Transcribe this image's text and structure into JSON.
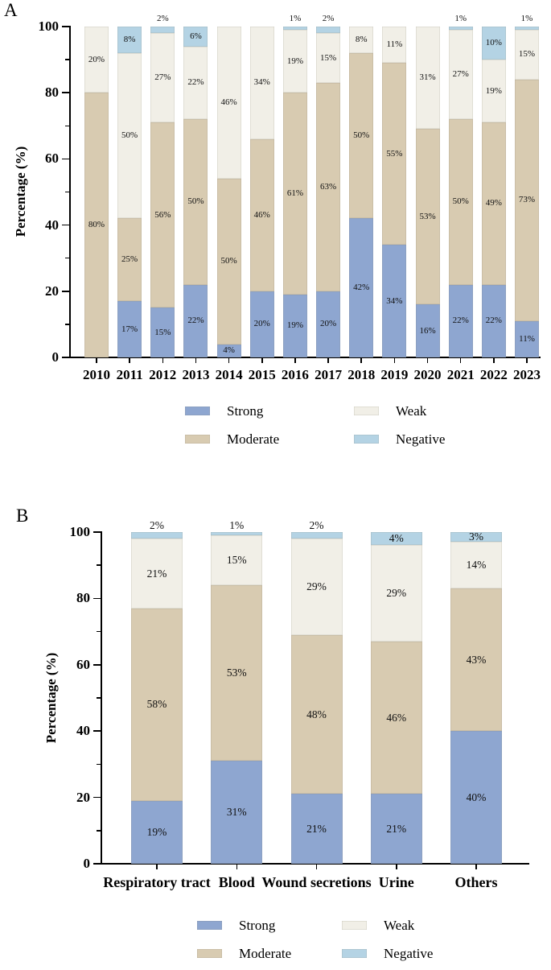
{
  "figure_title": "",
  "label_suffix": "%",
  "chart_data": [
    {
      "panel_letter": "A",
      "type": "bar",
      "subtype": "stacked-percentage",
      "ylabel": "Percentage (%)",
      "ylim": [
        0,
        100
      ],
      "yticks": [
        0,
        20,
        40,
        60,
        80,
        100
      ],
      "yticks_minor": [
        10,
        30,
        50,
        70,
        90
      ],
      "grid": false,
      "legend_position": "bottom-two-columns",
      "categories": [
        "2010",
        "2011",
        "2012",
        "2013",
        "2014",
        "2015",
        "2016",
        "2017",
        "2018",
        "2019",
        "2020",
        "2021",
        "2022",
        "2023"
      ],
      "series": [
        {
          "name": "Strong",
          "color": "#8ea6d0",
          "values": [
            0,
            17,
            15,
            22,
            4,
            20,
            19,
            20,
            42,
            34,
            16,
            22,
            22,
            11
          ]
        },
        {
          "name": "Moderate",
          "color": "#d8cbb1",
          "values": [
            80,
            25,
            56,
            50,
            50,
            46,
            61,
            63,
            50,
            55,
            53,
            50,
            49,
            73
          ]
        },
        {
          "name": "Weak",
          "color": "#f1efe7",
          "values": [
            20,
            50,
            27,
            22,
            46,
            34,
            19,
            15,
            8,
            11,
            31,
            27,
            19,
            15
          ]
        },
        {
          "name": "Negative",
          "color": "#b4d3e4",
          "values": [
            0,
            8,
            2,
            6,
            0,
            0,
            1,
            2,
            0,
            0,
            0,
            1,
            10,
            1
          ]
        }
      ]
    },
    {
      "panel_letter": "B",
      "type": "bar",
      "subtype": "stacked-percentage",
      "ylabel": "Percentage (%)",
      "ylim": [
        0,
        100
      ],
      "yticks": [
        0,
        20,
        40,
        60,
        80,
        100
      ],
      "yticks_minor": [
        10,
        30,
        50,
        70,
        90
      ],
      "grid": false,
      "legend_position": "bottom-two-columns",
      "categories": [
        "Respiratory tract",
        "Blood",
        "Wound secretions",
        "Urine",
        "Others"
      ],
      "series": [
        {
          "name": "Strong",
          "color": "#8ea6d0",
          "values": [
            19,
            31,
            21,
            21,
            40
          ]
        },
        {
          "name": "Moderate",
          "color": "#d8cbb1",
          "values": [
            58,
            53,
            48,
            46,
            43
          ]
        },
        {
          "name": "Weak",
          "color": "#f1efe7",
          "values": [
            21,
            15,
            29,
            29,
            14
          ]
        },
        {
          "name": "Negative",
          "color": "#b4d3e4",
          "values": [
            2,
            1,
            2,
            4,
            3
          ]
        }
      ]
    }
  ]
}
